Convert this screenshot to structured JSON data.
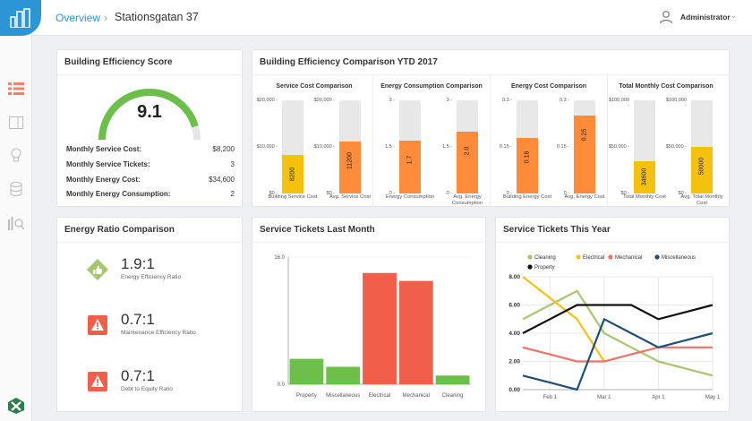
{
  "header": {
    "breadcrumb_root": "Overview",
    "breadcrumb_sep": "›",
    "breadcrumb_current": "Stationsgatan 37",
    "user_name": "Administrator",
    "user_caret": "⌄"
  },
  "colors": {
    "accent": "#2b95d6",
    "orange": "#ff8c3a",
    "yellow": "#f4c20d",
    "green": "#6cc04a",
    "red": "#f15e4a",
    "sidebar_icon": "#f0826a"
  },
  "score_card": {
    "title": "Building Efficiency Score",
    "score": "9.1",
    "score_fraction": 0.91,
    "stats": [
      {
        "label": "Monthly Service Cost:",
        "value": "$8,200"
      },
      {
        "label": "Monthly Service Tickets:",
        "value": "3"
      },
      {
        "label": "Monthly Energy Cost:",
        "value": "$34,600"
      },
      {
        "label": "Monthly Energy Consumption:",
        "value": "2"
      }
    ]
  },
  "comparison_card": {
    "title": "Building Efficiency Comparison YTD 2017",
    "panels": [
      {
        "title": "Service Cost Comparison",
        "ticks": [
          "$20,000 -",
          "$10,000 -",
          "$0 -"
        ],
        "max": 20000,
        "bars": [
          {
            "value": 8200,
            "value_label": "8200",
            "label": "Building Service Cost",
            "color": "#f4c20d"
          },
          {
            "value": 11200,
            "value_label": "11200",
            "label": "Avg. Service Cost",
            "color": "#ff8c3a"
          }
        ]
      },
      {
        "title": "Energy Consumption Comparison",
        "ticks": [
          "3 -",
          "1.5 -",
          "0 -"
        ],
        "max": 3,
        "bars": [
          {
            "value": 1.7,
            "value_label": "1.7",
            "label": "Energy Consumption",
            "color": "#ff8c3a"
          },
          {
            "value": 2.0,
            "value_label": "2.0",
            "label": "Avg. Energy Consumption",
            "color": "#ff8c3a"
          }
        ]
      },
      {
        "title": "Energy Cost Comparison",
        "ticks": [
          "0.3 -",
          "0.15 -",
          "0 -"
        ],
        "max": 0.3,
        "bars": [
          {
            "value": 0.18,
            "value_label": "0.18",
            "label": "Building Energy Cost",
            "color": "#ff8c3a"
          },
          {
            "value": 0.25,
            "value_label": "0.25",
            "label": "Avg. Energy Cost",
            "color": "#ff8c3a"
          }
        ]
      },
      {
        "title": "Total Monthly Cost Comparison",
        "ticks": [
          "$100,000 -",
          "$50,000 -",
          "$0 -"
        ],
        "max": 100000,
        "bars": [
          {
            "value": 34600,
            "value_label": "34600",
            "label": "Total Monthly Cost",
            "color": "#f4c20d"
          },
          {
            "value": 50000,
            "value_label": "50000",
            "label": "Avg. Total Monthly Cost",
            "color": "#f4c20d"
          }
        ]
      }
    ]
  },
  "ratio_card": {
    "title": "Energy Ratio Comparison",
    "items": [
      {
        "value": "1.9:1",
        "label": "Energy Efficiency Ratio",
        "icon": "thumbs-up-icon",
        "color": "#a8c66c"
      },
      {
        "value": "0.7:1",
        "label": "Maintenance Efficiency Ratio",
        "icon": "warning-icon",
        "color": "#f15e4a"
      },
      {
        "value": "0.7:1",
        "label": "Debt to Equity Ratio",
        "icon": "warning-icon",
        "color": "#f15e4a"
      }
    ]
  },
  "tickets_month": {
    "title": "Service Tickets Last Month",
    "chart_data": {
      "type": "bar",
      "categories": [
        "Property",
        "Miscellaneous",
        "Electrical",
        "Mechanical",
        "Cleaning"
      ],
      "values": [
        3.2,
        2.2,
        14.0,
        13.0,
        1.1
      ],
      "colors": [
        "#6cc04a",
        "#6cc04a",
        "#f15e4a",
        "#f15e4a",
        "#6cc04a"
      ],
      "ylim": [
        0,
        16
      ],
      "yticks": [
        "16.0",
        "0.0"
      ]
    }
  },
  "tickets_year": {
    "title": "Service Tickets This Year",
    "chart_data": {
      "type": "line",
      "x": [
        "Jan 1",
        "Feb 1",
        "Feb 15",
        "Mar 1",
        "Mar 15",
        "Apr 1",
        "Apr 15",
        "May 1"
      ],
      "xticks": [
        "Feb 1",
        "Mar 1",
        "Apr 1",
        "May 1"
      ],
      "xtick_index": [
        1,
        3,
        5,
        7
      ],
      "ylim": [
        0,
        8
      ],
      "yticks": [
        "0.00",
        "2.00",
        "4.00",
        "6.00",
        "8.00"
      ],
      "series": [
        {
          "name": "Cleaning",
          "color": "#a8c66c",
          "values": [
            5,
            6,
            7,
            4,
            3,
            2,
            1.5,
            1
          ]
        },
        {
          "name": "Electrical",
          "color": "#f4c20d",
          "values": [
            8,
            6.5,
            5,
            2,
            null,
            null,
            null,
            null
          ]
        },
        {
          "name": "Mechanical",
          "color": "#f0726a",
          "values": [
            3,
            2.5,
            2,
            2,
            2.5,
            3,
            3,
            3
          ]
        },
        {
          "name": "Miscellaneous",
          "color": "#1f4e79",
          "values": [
            1,
            0.5,
            0,
            5,
            4,
            3,
            3.5,
            4
          ]
        },
        {
          "name": "Property",
          "color": "#111111",
          "values": [
            4,
            5,
            6,
            6,
            6,
            5,
            5.5,
            6
          ]
        }
      ]
    }
  }
}
